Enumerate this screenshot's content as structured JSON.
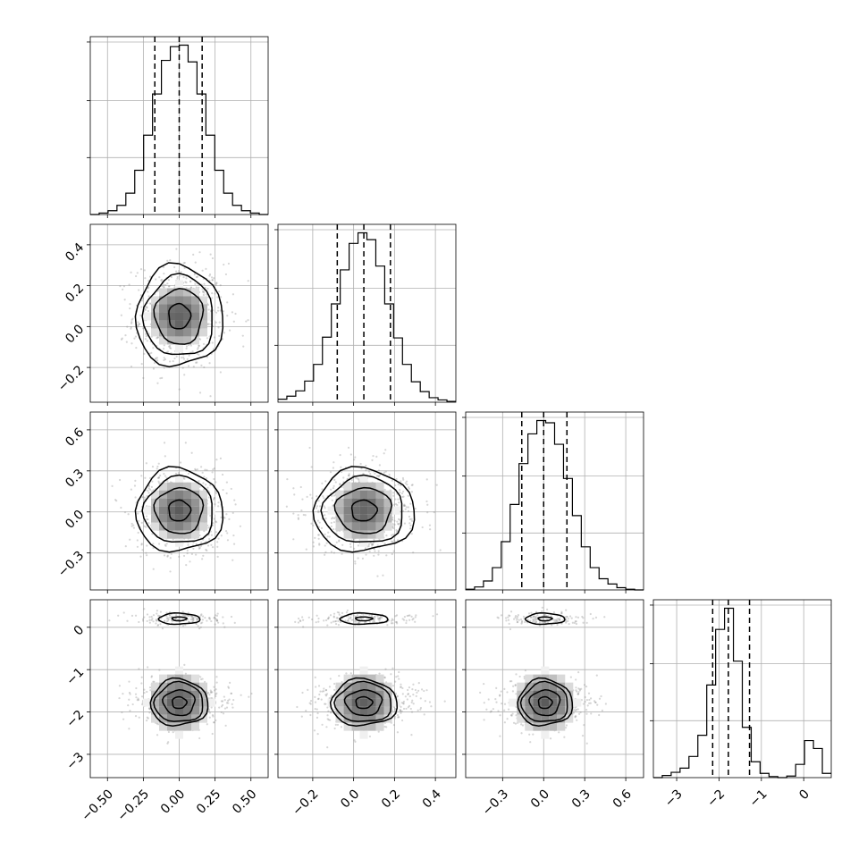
{
  "chart_data": {
    "type": "corner",
    "parameters": [
      {
        "index": 0,
        "range": [
          -0.62,
          0.62
        ],
        "ticks": [
          -0.5,
          -0.25,
          0.0,
          0.25,
          0.5
        ],
        "tick_labels": [
          "−0.50",
          "−0.25",
          "0.00",
          "0.25",
          "0.50"
        ],
        "quantiles": [
          -0.17,
          0.0,
          0.16
        ],
        "mean": 0.0,
        "sd": 0.16
      },
      {
        "index": 1,
        "range": [
          -0.37,
          0.5
        ],
        "ticks": [
          -0.2,
          0.0,
          0.2,
          0.4
        ],
        "tick_labels": [
          "−0.2",
          "0.0",
          "0.2",
          "0.4"
        ],
        "quantiles": [
          -0.08,
          0.05,
          0.18
        ],
        "mean": 0.05,
        "sd": 0.13
      },
      {
        "index": 2,
        "range": [
          -0.57,
          0.73
        ],
        "ticks": [
          -0.3,
          0.0,
          0.3,
          0.6
        ],
        "tick_labels": [
          "−0.3",
          "0.0",
          "0.3",
          "0.6"
        ],
        "quantiles": [
          -0.16,
          0.0,
          0.17
        ],
        "mean": 0.01,
        "sd": 0.16
      },
      {
        "index": 3,
        "range": [
          -3.55,
          0.65
        ],
        "ticks": [
          -3,
          -2,
          -1,
          0
        ],
        "tick_labels": [
          "−3",
          "−2",
          "−1",
          "0"
        ],
        "quantiles": [
          -2.15,
          -1.78,
          -1.28
        ],
        "mode_main": -1.78,
        "mode_secondary": 0.2
      }
    ],
    "histograms": [
      {
        "param": 0,
        "bin_edges": [
          -0.62,
          -0.558,
          -0.496,
          -0.434,
          -0.372,
          -0.31,
          -0.248,
          -0.186,
          -0.124,
          -0.062,
          0.0,
          0.062,
          0.124,
          0.186,
          0.248,
          0.31,
          0.372,
          0.434,
          0.496,
          0.558,
          0.62
        ],
        "counts": [
          0,
          2,
          5,
          12,
          28,
          58,
          104,
          158,
          202,
          220,
          222,
          200,
          158,
          104,
          58,
          28,
          12,
          5,
          2,
          0
        ]
      },
      {
        "param": 1,
        "bin_edges": [
          -0.37,
          -0.3265,
          -0.283,
          -0.2395,
          -0.196,
          -0.1525,
          -0.109,
          -0.0655,
          -0.022,
          0.0215,
          0.065,
          0.1085,
          0.152,
          0.1955,
          0.239,
          0.2825,
          0.326,
          0.3695,
          0.413,
          0.4565,
          0.5
        ],
        "counts": [
          4,
          8,
          15,
          28,
          50,
          86,
          130,
          175,
          210,
          224,
          215,
          180,
          130,
          85,
          50,
          27,
          14,
          6,
          3,
          1
        ]
      },
      {
        "param": 2,
        "bin_edges": [
          -0.57,
          -0.505,
          -0.44,
          -0.375,
          -0.31,
          -0.245,
          -0.18,
          -0.115,
          -0.05,
          0.015,
          0.08,
          0.145,
          0.21,
          0.275,
          0.34,
          0.405,
          0.47,
          0.535,
          0.6,
          0.665,
          0.73
        ],
        "counts": [
          1,
          4,
          12,
          30,
          65,
          115,
          170,
          210,
          228,
          225,
          196,
          150,
          100,
          58,
          30,
          15,
          8,
          3,
          1,
          0
        ]
      },
      {
        "param": 3,
        "bin_edges": [
          -3.55,
          -3.34,
          -3.13,
          -2.92,
          -2.71,
          -2.5,
          -2.29,
          -2.08,
          -1.87,
          -1.66,
          -1.45,
          -1.24,
          -1.03,
          -0.82,
          -0.61,
          -0.4,
          -0.19,
          0.02,
          0.23,
          0.44,
          0.65
        ],
        "counts": [
          0,
          4,
          10,
          18,
          40,
          80,
          175,
          280,
          320,
          220,
          95,
          30,
          8,
          2,
          0,
          3,
          25,
          70,
          55,
          8
        ]
      }
    ],
    "contours": [
      {
        "x": 0,
        "y": 1,
        "note": "single peak near (0.0, 0.05)"
      },
      {
        "x": 0,
        "y": 2,
        "note": "single peak near (0.0, 0.0)"
      },
      {
        "x": 1,
        "y": 2,
        "note": "single peak near (0.05, 0.0)"
      },
      {
        "x": 0,
        "y": 3,
        "note": "peaks near y=-1.78 and y=0.2"
      },
      {
        "x": 1,
        "y": 3,
        "note": "peaks near y=-1.78 and y=0.2"
      },
      {
        "x": 2,
        "y": 3,
        "note": "peaks near y=-1.78 and y=0.2"
      }
    ],
    "grid": true,
    "title": "",
    "xlabel": "",
    "ylabel": ""
  }
}
